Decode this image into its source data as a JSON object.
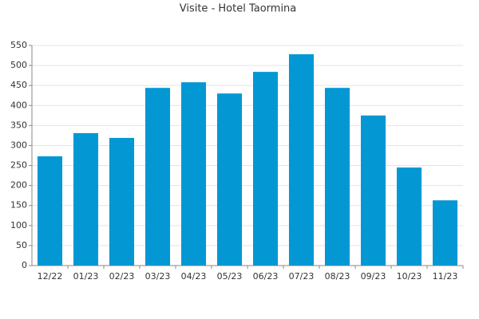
{
  "chart_data": {
    "type": "bar",
    "title": "Visite - Hotel Taormina",
    "categories": [
      "12/22",
      "01/23",
      "02/23",
      "03/23",
      "04/23",
      "05/23",
      "06/23",
      "07/23",
      "08/23",
      "09/23",
      "10/23",
      "11/23"
    ],
    "values": [
      273,
      331,
      319,
      444,
      458,
      430,
      484,
      528,
      444,
      375,
      245,
      163
    ],
    "color": "#0398d4",
    "ylim": [
      0,
      550
    ],
    "yticks": [
      0,
      50,
      100,
      150,
      200,
      250,
      300,
      350,
      400,
      450,
      500,
      550
    ],
    "grid": true
  }
}
